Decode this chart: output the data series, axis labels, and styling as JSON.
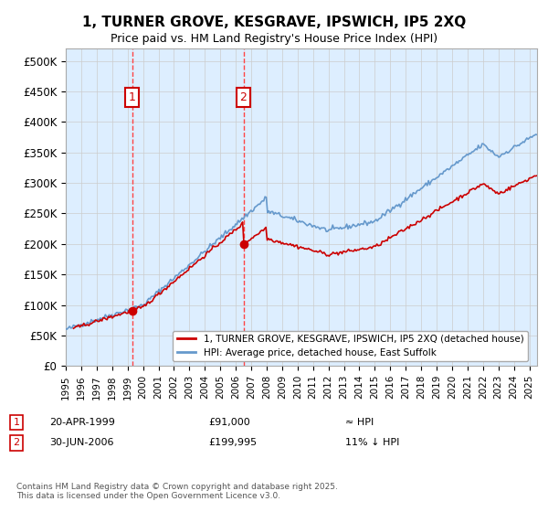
{
  "title": "1, TURNER GROVE, KESGRAVE, IPSWICH, IP5 2XQ",
  "subtitle": "Price paid vs. HM Land Registry's House Price Index (HPI)",
  "ylabel_ticks": [
    "£0",
    "£50K",
    "£100K",
    "£150K",
    "£200K",
    "£250K",
    "£300K",
    "£350K",
    "£400K",
    "£450K",
    "£500K"
  ],
  "ytick_values": [
    0,
    50000,
    100000,
    150000,
    200000,
    250000,
    300000,
    350000,
    400000,
    450000,
    500000
  ],
  "ylim": [
    0,
    520000
  ],
  "xlim_start": 1995.0,
  "xlim_end": 2025.5,
  "sale1_year": 1999.3,
  "sale1_price": 91000,
  "sale2_year": 2006.5,
  "sale2_price": 199995,
  "sale1_label": "1",
  "sale2_label": "2",
  "legend_line1": "1, TURNER GROVE, KESGRAVE, IPSWICH, IP5 2XQ (detached house)",
  "legend_line2": "HPI: Average price, detached house, East Suffolk",
  "annotation1": "1   20-APR-1999        £91,000             ≈ HPI",
  "annotation2": "2   30-JUN-2006        £199,995           11% ↓ HPI",
  "footnote": "Contains HM Land Registry data © Crown copyright and database right 2025.\nThis data is licensed under the Open Government Licence v3.0.",
  "color_red": "#cc0000",
  "color_blue": "#6699cc",
  "color_dashed": "#ff4444",
  "bg_color": "#ddeeff",
  "plot_bg": "#ffffff"
}
